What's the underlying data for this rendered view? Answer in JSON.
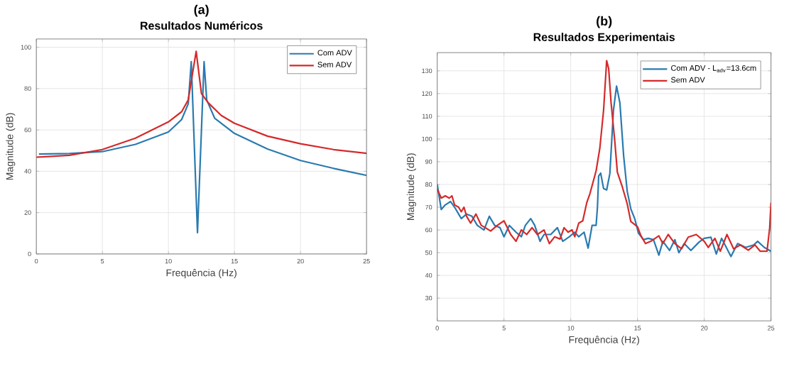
{
  "chart_data": [
    {
      "type": "line",
      "title": "(a)",
      "subtitle": "Resultados Numéricos",
      "xlabel": "Frequência (Hz)",
      "ylabel": "Magnitude (dB)",
      "xlim": [
        0,
        25
      ],
      "ylim": [
        0,
        104
      ],
      "xticks": [
        0,
        5,
        10,
        15,
        20,
        25
      ],
      "yticks": [
        0,
        20,
        40,
        60,
        80,
        100
      ],
      "grid": true,
      "legend": "top right",
      "series": [
        {
          "name": "Com ADV",
          "color": "#2a7ab0",
          "x": [
            0.2,
            2.5,
            5,
            7.5,
            10,
            11,
            11.5,
            11.73,
            12.2,
            12.7,
            12.9,
            13.5,
            15,
            17.5,
            20,
            22.5,
            25
          ],
          "values": [
            48.3,
            48.6,
            49.5,
            53,
            59,
            65,
            72.6,
            93,
            10.3,
            93,
            74.5,
            65.7,
            58.3,
            50.8,
            45.2,
            41.4,
            38
          ]
        },
        {
          "name": "Sem ADV",
          "color": "#d42a2a",
          "x": [
            0,
            2.5,
            5,
            7.5,
            10,
            11,
            11.5,
            12.1,
            12.5,
            13,
            14,
            15,
            17.5,
            20,
            22.5,
            25
          ],
          "values": [
            46.8,
            47.7,
            50.5,
            56,
            63.9,
            68.8,
            74.5,
            98,
            77.6,
            73.2,
            67,
            63.2,
            57,
            53.3,
            50.5,
            48.7
          ]
        }
      ]
    },
    {
      "type": "line",
      "title": "(b)",
      "subtitle": "Resultados Experimentais",
      "xlabel": "Frequência (Hz)",
      "ylabel": "Magnitude (dB)",
      "xlim": [
        0,
        25
      ],
      "ylim": [
        20,
        138
      ],
      "xticks": [
        0,
        5,
        10,
        15,
        20,
        25
      ],
      "yticks": [
        30,
        40,
        50,
        60,
        70,
        80,
        90,
        100,
        110,
        120,
        130
      ],
      "grid": true,
      "legend": "top right",
      "series": [
        {
          "name": "Com ADV - L$_{adv}$=13.6cm",
          "color": "#2a7ab0",
          "x": [
            0,
            0.3,
            0.6,
            1.0,
            1.3,
            1.6,
            1.8,
            2.2,
            2.6,
            3.0,
            3.5,
            3.9,
            4.3,
            4.7,
            5.0,
            5.4,
            5.9,
            6.3,
            6.6,
            7.0,
            7.3,
            7.7,
            8.0,
            8.5,
            9.0,
            9.4,
            9.9,
            10.3,
            10.6,
            11.0,
            11.3,
            11.6,
            11.9,
            12.0,
            12.09,
            12.24,
            12.46,
            12.69,
            12.93,
            13.2,
            13.43,
            13.68,
            13.96,
            14.23,
            14.5,
            14.8,
            15.07,
            15.45,
            15.8,
            16.2,
            16.6,
            16.9,
            17.4,
            17.8,
            18.1,
            18.5,
            19,
            19.6,
            20,
            20.5,
            20.9,
            21.3,
            22,
            22.5,
            23.1,
            23.7,
            24,
            24.5,
            25
          ],
          "values": [
            80,
            69,
            71,
            72.5,
            70,
            67,
            65,
            67,
            66,
            62,
            60,
            66,
            62,
            61,
            57,
            62,
            59,
            57,
            62,
            65,
            62,
            55,
            58,
            58,
            61,
            55,
            57,
            59,
            57,
            59,
            52,
            62,
            62,
            70,
            83.7,
            85,
            78.2,
            77.6,
            84.8,
            112.7,
            123.3,
            116,
            92.7,
            77,
            69.3,
            64.8,
            58.6,
            55.7,
            56.3,
            55.7,
            48.9,
            55,
            51,
            55.7,
            50,
            54,
            51,
            54.6,
            56.3,
            56.8,
            49.4,
            56.3,
            48.3,
            54,
            52.3,
            53.4,
            55,
            52.3,
            50.6
          ]
        },
        {
          "name": "Sem ADV",
          "color": "#d42a2a",
          "x": [
            0,
            0.3,
            0.6,
            0.9,
            1.1,
            1.3,
            1.6,
            1.8,
            2.0,
            2.2,
            2.5,
            2.9,
            3.3,
            3.6,
            4.0,
            4.5,
            5.0,
            5.5,
            5.9,
            6.3,
            6.7,
            7.1,
            7.5,
            8.0,
            8.4,
            8.8,
            9.2,
            9.5,
            9.8,
            10.1,
            10.3,
            10.6,
            10.9,
            11.2,
            11.44,
            11.9,
            12.18,
            12.46,
            12.69,
            12.84,
            13.02,
            13.3,
            13.49,
            13.86,
            14.23,
            14.5,
            15,
            15.26,
            15.6,
            16,
            16.6,
            16.9,
            17.3,
            17.8,
            18.3,
            18.8,
            19.4,
            20,
            20.3,
            20.8,
            21.2,
            21.7,
            22.2,
            22.7,
            23.3,
            23.8,
            24.2,
            24.7,
            24.9,
            25
          ],
          "values": [
            78,
            74,
            75,
            74,
            75,
            71,
            70,
            68,
            70,
            66,
            63,
            67,
            62,
            61,
            59.5,
            62,
            64,
            58,
            55,
            60,
            58,
            61,
            58,
            60,
            54,
            57,
            56,
            61,
            59,
            60,
            57,
            63,
            64,
            72,
            76,
            86,
            96,
            112.7,
            134.5,
            131,
            116,
            99,
            85.4,
            79,
            71.5,
            63.7,
            61.4,
            57.4,
            54,
            55,
            57.4,
            54,
            58,
            54,
            51.7,
            56.8,
            58,
            55,
            52.3,
            56.3,
            50.6,
            58,
            51.7,
            53.4,
            51.1,
            53.4,
            50.6,
            50.6,
            60.8,
            72
          ]
        }
      ]
    }
  ]
}
